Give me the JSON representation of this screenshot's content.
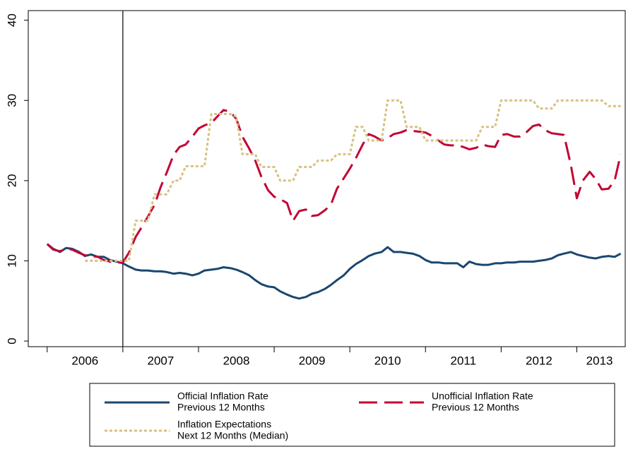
{
  "chart_data": {
    "type": "line",
    "ylim": [
      -0.7,
      41.2
    ],
    "yticks": [
      0,
      10,
      20,
      30,
      40
    ],
    "xlim": [
      2005.75,
      2013.64
    ],
    "xticks": [
      {
        "value": 2006.5,
        "label": "2006"
      },
      {
        "value": 2007.5,
        "label": "2007"
      },
      {
        "value": 2008.5,
        "label": "2008"
      },
      {
        "value": 2009.5,
        "label": "2009"
      },
      {
        "value": 2010.5,
        "label": "2010"
      },
      {
        "value": 2011.5,
        "label": "2011"
      },
      {
        "value": 2012.5,
        "label": "2012"
      },
      {
        "value": 2013.3,
        "label": "2013"
      }
    ],
    "xtick_marks": [
      2006,
      2007,
      2008,
      2009,
      2010,
      2011,
      2012,
      2013
    ],
    "xline": 2007,
    "x": [
      2006,
      2006.08,
      2006.17,
      2006.25,
      2006.33,
      2006.42,
      2006.5,
      2006.58,
      2006.67,
      2006.75,
      2006.83,
      2006.92,
      2007,
      2007.08,
      2007.17,
      2007.25,
      2007.33,
      2007.42,
      2007.5,
      2007.58,
      2007.67,
      2007.75,
      2007.83,
      2007.92,
      2008,
      2008.08,
      2008.17,
      2008.25,
      2008.33,
      2008.42,
      2008.5,
      2008.58,
      2008.67,
      2008.75,
      2008.83,
      2008.92,
      2009,
      2009.08,
      2009.17,
      2009.25,
      2009.33,
      2009.42,
      2009.5,
      2009.58,
      2009.67,
      2009.75,
      2009.83,
      2009.92,
      2010,
      2010.08,
      2010.17,
      2010.25,
      2010.33,
      2010.42,
      2010.5,
      2010.58,
      2010.67,
      2010.75,
      2010.83,
      2010.92,
      2011,
      2011.08,
      2011.17,
      2011.25,
      2011.33,
      2011.42,
      2011.5,
      2011.58,
      2011.67,
      2011.75,
      2011.83,
      2011.92,
      2012,
      2012.08,
      2012.17,
      2012.25,
      2012.33,
      2012.42,
      2012.5,
      2012.58,
      2012.67,
      2012.75,
      2012.83,
      2012.92,
      2013,
      2013.08,
      2013.17,
      2013.25,
      2013.33,
      2013.42,
      2013.5,
      2013.58
    ],
    "series": [
      {
        "name": [
          "Official Inflation Rate",
          "Previous 12 Months"
        ],
        "color": "#1a476f",
        "dash": "none",
        "values": [
          12.1,
          11.5,
          11.1,
          11.6,
          11.5,
          11.1,
          10.6,
          10.8,
          10.5,
          10.5,
          10.1,
          9.9,
          9.7,
          9.3,
          8.9,
          8.8,
          8.8,
          8.7,
          8.7,
          8.6,
          8.4,
          8.5,
          8.4,
          8.2,
          8.4,
          8.8,
          8.9,
          9.0,
          9.2,
          9.1,
          8.9,
          8.6,
          8.2,
          7.6,
          7.1,
          6.8,
          6.7,
          6.2,
          5.8,
          5.5,
          5.3,
          5.5,
          5.9,
          6.1,
          6.5,
          7.0,
          7.6,
          8.2,
          9.0,
          9.6,
          10.1,
          10.6,
          10.9,
          11.1,
          11.7,
          11.1,
          11.1,
          11.0,
          10.9,
          10.6,
          10.1,
          9.8,
          9.8,
          9.7,
          9.7,
          9.7,
          9.2,
          9.9,
          9.6,
          9.5,
          9.5,
          9.7,
          9.7,
          9.8,
          9.8,
          9.9,
          9.9,
          9.9,
          10.0,
          10.1,
          10.3,
          10.7,
          10.9,
          11.1,
          10.8,
          10.6,
          10.4,
          10.3,
          10.5,
          10.6,
          10.5,
          10.9
        ]
      },
      {
        "name": [
          "Unofficial Inflation Rate",
          "Previous 12 Months"
        ],
        "color": "#c10534",
        "dash": "26 10",
        "values": [
          12.1,
          11.4,
          11.2,
          11.5,
          11.4,
          11.0,
          10.7,
          10.6,
          10.5,
          10.1,
          9.9,
          9.8,
          9.8,
          11.0,
          13.0,
          14.2,
          15.5,
          17.0,
          19.2,
          21.0,
          23.2,
          24.2,
          24.5,
          25.5,
          26.5,
          26.9,
          27.2,
          28.0,
          28.8,
          28.6,
          27.7,
          25.5,
          24.0,
          22.5,
          20.5,
          18.8,
          18.0,
          17.7,
          17.2,
          15.0,
          16.2,
          16.4,
          15.6,
          15.7,
          16.3,
          17.0,
          19.0,
          20.3,
          21.5,
          22.8,
          24.5,
          25.8,
          25.5,
          25.0,
          25.3,
          25.8,
          26.0,
          26.3,
          26.2,
          26.1,
          26.0,
          25.6,
          25.0,
          24.5,
          24.4,
          24.4,
          24.2,
          23.9,
          24.1,
          24.5,
          24.3,
          24.2,
          25.7,
          25.8,
          25.5,
          25.5,
          26.0,
          26.8,
          27.0,
          26.3,
          25.9,
          25.8,
          25.7,
          22.0,
          17.8,
          20.0,
          21.1,
          20.2,
          18.9,
          19.0,
          20.0,
          23.3
        ]
      },
      {
        "name": [
          "Inflation Expectations",
          "Next 12 Months (Median)"
        ],
        "color": "#d7c280",
        "dash": "4 3",
        "values": [
          null,
          null,
          null,
          null,
          null,
          null,
          10,
          10,
          10,
          10,
          10,
          10,
          10,
          10,
          15,
          15,
          15,
          18.3,
          18.3,
          18.3,
          20,
          20,
          21.8,
          21.8,
          21.8,
          21.8,
          28.3,
          28.3,
          28.3,
          28.3,
          28,
          23.3,
          23.3,
          23.3,
          21.7,
          21.7,
          21.7,
          20,
          20,
          20,
          21.7,
          21.7,
          21.7,
          22.5,
          22.5,
          22.5,
          23.3,
          23.3,
          23.3,
          26.7,
          26.7,
          25,
          25,
          25,
          30,
          30,
          30,
          26.7,
          26.7,
          26.7,
          25,
          25,
          25,
          25,
          25,
          25,
          25,
          25,
          25,
          26.7,
          26.7,
          26.7,
          30,
          30,
          30,
          30,
          30,
          30,
          29,
          29,
          29,
          30,
          30,
          30,
          30,
          30,
          30,
          30,
          30,
          29.3,
          29.3,
          29.3
        ]
      }
    ]
  }
}
